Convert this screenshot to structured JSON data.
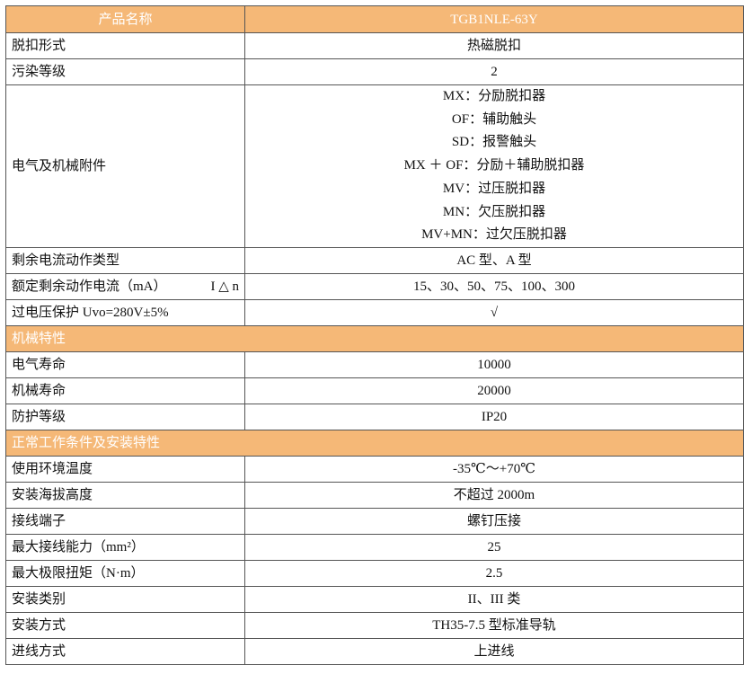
{
  "header": {
    "name_label": "产品名称",
    "model": "TGB1NLE-63Y"
  },
  "rows_a": [
    {
      "label": "脱扣形式",
      "value": "热磁脱扣"
    },
    {
      "label": "污染等级",
      "value": "2"
    }
  ],
  "accessories": {
    "label": "电气及机械附件",
    "values": [
      "MX：分励脱扣器",
      "OF：辅助触头",
      "SD：报警触头",
      "MX ＋ OF：分励＋辅助脱扣器",
      "MV：过压脱扣器",
      "MN：欠压脱扣器",
      "MV+MN：过欠压脱扣器"
    ]
  },
  "rows_b": [
    {
      "label": "剩余电流动作类型",
      "value": "AC 型、A 型"
    },
    {
      "label": "额定剩余动作电流（mA）",
      "symbol": "I △ n",
      "value": "15、30、50、75、100、300"
    },
    {
      "label": "过电压保护 Uvo=280V±5%",
      "value": "√"
    }
  ],
  "section_mech": "机械特性",
  "rows_c": [
    {
      "label": "电气寿命",
      "value": "10000"
    },
    {
      "label": "机械寿命",
      "value": "20000"
    },
    {
      "label": "防护等级",
      "value": "IP20"
    }
  ],
  "section_env": "正常工作条件及安装特性",
  "rows_d": [
    {
      "label": "使用环境温度",
      "value": "-35℃～+70℃"
    },
    {
      "label": "安装海拔高度",
      "value": "不超过 2000m"
    },
    {
      "label": "接线端子",
      "value": "螺钉压接"
    },
    {
      "label": "最大接线能力（mm²）",
      "value": "25"
    },
    {
      "label": "最大极限扭矩（N·m）",
      "value": "2.5"
    },
    {
      "label": "安装类别",
      "value": "II、III 类"
    },
    {
      "label": "安装方式",
      "value": "TH35-7.5 型标准导轨"
    },
    {
      "label": "进线方式",
      "value": "上进线"
    }
  ],
  "colors": {
    "header_bg": "#F5B877",
    "header_text": "#FFFFFF",
    "border": "#555555"
  }
}
